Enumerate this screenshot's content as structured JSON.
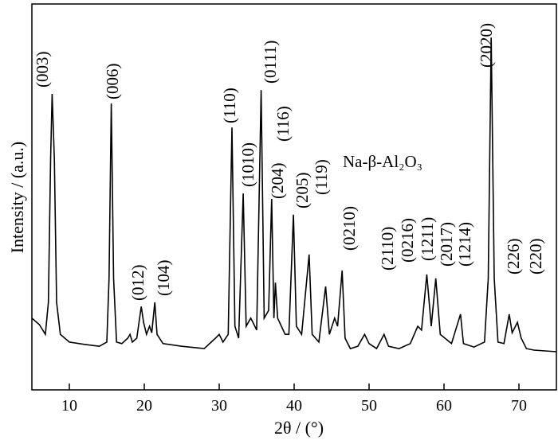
{
  "chart_data": {
    "type": "line",
    "x_label": "2θ / (°)",
    "y_label": "Intensity / (a.u.)",
    "xlim": [
      5,
      75
    ],
    "xticks": [
      10,
      20,
      30,
      40,
      50,
      60,
      70
    ],
    "ylim": [
      0,
      100
    ],
    "color": "#000000",
    "x": [
      5,
      6,
      6.8,
      7.2,
      7.5,
      7.7,
      8.0,
      8.3,
      8.8,
      10,
      12,
      14,
      15.0,
      15.3,
      15.6,
      15.9,
      16.3,
      17,
      17.8,
      18.1,
      18.4,
      19,
      19.6,
      19.9,
      20.3,
      20.7,
      21,
      21.4,
      21.7,
      22.5,
      25,
      28,
      29.5,
      30,
      30.5,
      31.2,
      31.7,
      32.1,
      32.6,
      33.2,
      33.6,
      34.2,
      34.5,
      35.0,
      35.6,
      36,
      36.6,
      37.0,
      37.3,
      37.5,
      37.8,
      38.3,
      38.8,
      39.3,
      39.9,
      40.3,
      41,
      42,
      42.4,
      43.3,
      44.2,
      44.7,
      45.4,
      45.8,
      46.4,
      46.8,
      47.5,
      48.5,
      49.4,
      50,
      51,
      52,
      52.6,
      54,
      55.5,
      56.5,
      57,
      57.7,
      58.3,
      58.9,
      59.5,
      61,
      62.2,
      62.6,
      64,
      65.4,
      65.9,
      66.3,
      66.7,
      67.2,
      68,
      68.7,
      69.1,
      69.8,
      70.3,
      71,
      72,
      75
    ],
    "values": [
      18.6,
      16.9,
      14.4,
      22.7,
      59.8,
      76.7,
      59.8,
      22.7,
      14.4,
      12.4,
      11.8,
      11.3,
      12.4,
      28.9,
      74.2,
      28.9,
      12.4,
      12.0,
      13.4,
      14.4,
      12.4,
      13.4,
      21.6,
      17.5,
      14.4,
      16.5,
      14.8,
      22.7,
      14.4,
      12.0,
      11.3,
      10.7,
      13.4,
      14.4,
      12.4,
      14.4,
      68.0,
      16.5,
      13.4,
      50.9,
      16.5,
      18.6,
      17.5,
      15.5,
      77.7,
      18.6,
      20.6,
      49.5,
      18.6,
      27.8,
      18.6,
      16.5,
      14.4,
      14.4,
      45.4,
      16.5,
      14.4,
      35.1,
      14.4,
      12.4,
      26.8,
      14.4,
      18.6,
      16.5,
      30.9,
      13.4,
      10.7,
      11.3,
      14.4,
      12.0,
      10.7,
      14.4,
      11.3,
      10.7,
      12.0,
      16.5,
      15.5,
      29.9,
      16.5,
      28.9,
      14.4,
      12.0,
      19.6,
      12.0,
      11.1,
      12.4,
      28.9,
      91.3,
      28.9,
      12.4,
      12.0,
      19.6,
      14.8,
      17.5,
      13.4,
      10.7,
      10.3,
      9.9
    ],
    "annotations": [
      "(003)",
      "(006)",
      "(012)",
      "(104)",
      "(110)",
      "(1010)",
      "(0111)",
      "(204)",
      "(116)",
      "(205)",
      "(119)",
      "Na-β-Al₂O₃",
      "(0210)",
      "(2110)",
      "(0216)",
      "(1211)",
      "(2017)",
      "(1214)",
      "(2020)",
      "(226)",
      "(220)"
    ]
  }
}
